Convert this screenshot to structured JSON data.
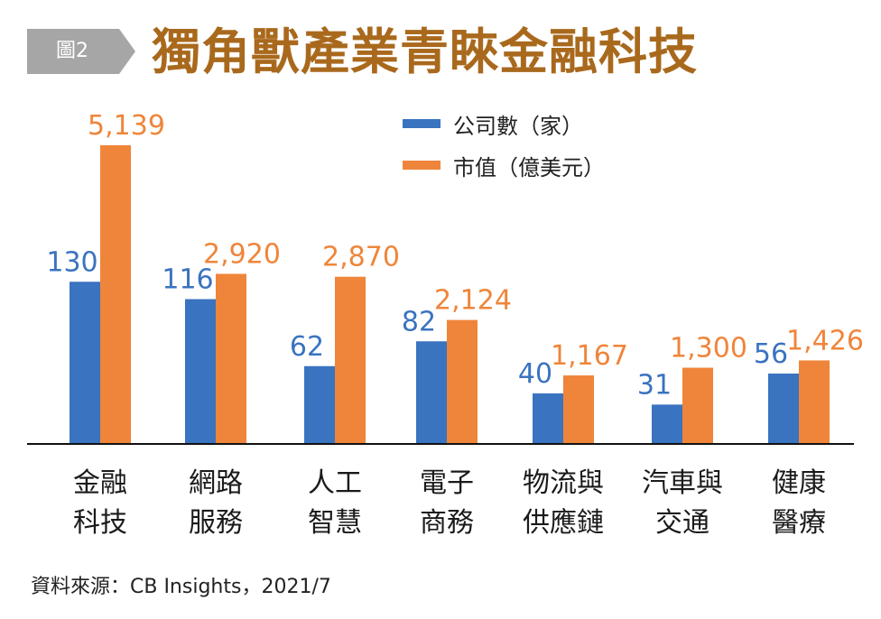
{
  "header": {
    "figure_tag": "圖2",
    "title": "獨角獸產業青睞金融科技"
  },
  "source": "資料來源：CB Insights，2021/7",
  "colors": {
    "count": "#3a73c0",
    "value": "#ef853a",
    "tag": "#a6a6a6",
    "title": "#a9691d"
  },
  "chart_data": {
    "type": "bar",
    "title": "獨角獸產業青睞金融科技",
    "categories": [
      [
        "金融",
        "科技"
      ],
      [
        "網路",
        "服務"
      ],
      [
        "人工",
        "智慧"
      ],
      [
        "電子",
        "商務"
      ],
      [
        "物流與",
        "供應鏈"
      ],
      [
        "汽車與",
        "交通"
      ],
      [
        "健康",
        "醫療"
      ]
    ],
    "series": [
      {
        "name": "公司數（家）",
        "values": [
          130,
          116,
          62,
          82,
          40,
          31,
          56
        ]
      },
      {
        "name": "市值（億美元）",
        "values": [
          5139,
          2920,
          2870,
          2124,
          1167,
          1300,
          1426
        ]
      }
    ],
    "value_labels": [
      [
        "130",
        "116",
        "62",
        "82",
        "40",
        "31",
        "56"
      ],
      [
        "5,139",
        "2,920",
        "2,870",
        "2,124",
        "1,167",
        "1,300",
        "1,426"
      ]
    ],
    "ylim": [
      0,
      5139
    ],
    "grid": false,
    "legend": "top-center"
  }
}
